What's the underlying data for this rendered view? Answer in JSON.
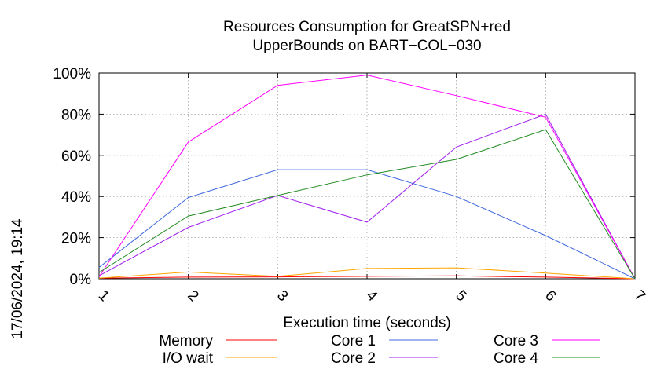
{
  "chart_data": {
    "type": "line",
    "title_line1": "Resources Consumption for GreatSPN+red",
    "title_line2": "UpperBounds on BART−COL−030",
    "xlabel": "Execution time (seconds)",
    "ylabel": "",
    "x": [
      1,
      2,
      3,
      4,
      5,
      6,
      7
    ],
    "x_tick_labels": [
      "1",
      "2",
      "3",
      "4",
      "5",
      "6",
      "7"
    ],
    "xlim": [
      1,
      7
    ],
    "ylim": [
      0,
      100
    ],
    "y_ticks": [
      0,
      20,
      40,
      60,
      80,
      100
    ],
    "y_tick_labels": [
      "0%",
      "20%",
      "40%",
      "60%",
      "80%",
      "100%"
    ],
    "grid": true,
    "legend_position": "bottom",
    "series": [
      {
        "name": "Memory",
        "color": "#ff0000",
        "values": [
          0.3,
          0.8,
          0.9,
          1.2,
          1.4,
          0.8,
          0
        ]
      },
      {
        "name": "I/O wait",
        "color": "#ffa500",
        "values": [
          0.3,
          3.3,
          1.2,
          5.0,
          5.3,
          2.8,
          0
        ]
      },
      {
        "name": "Core 1",
        "color": "#4169e1",
        "values": [
          5.5,
          39.5,
          53.0,
          53.0,
          40.0,
          21.0,
          0
        ]
      },
      {
        "name": "Core 2",
        "color": "#a020f0",
        "values": [
          1.5,
          25.0,
          40.5,
          27.5,
          64.0,
          80.0,
          0
        ]
      },
      {
        "name": "Core 3",
        "color": "#ff00ff",
        "values": [
          1.0,
          66.5,
          94.0,
          99.0,
          89.0,
          78.5,
          0
        ]
      },
      {
        "name": "Core 4",
        "color": "#228b22",
        "values": [
          3.0,
          30.5,
          40.5,
          50.5,
          58.0,
          72.5,
          0
        ]
      }
    ]
  },
  "timestamp": "17/06/2024, 19:14"
}
